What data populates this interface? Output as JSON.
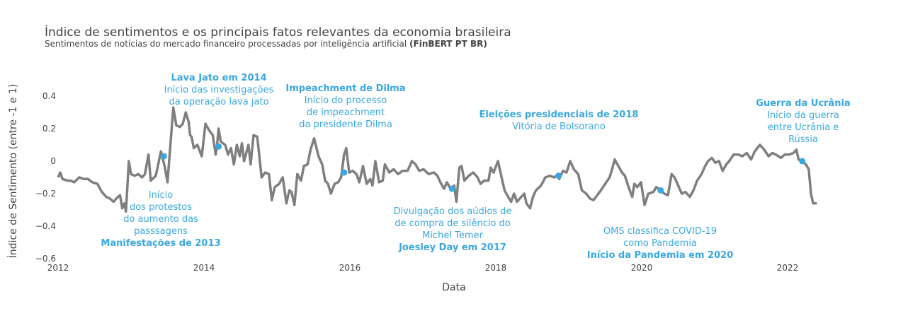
{
  "chart_data": {
    "type": "line",
    "title": "Índice de sentimentos e os principais fatos relevantes da economia brasileira",
    "subtitle": "Sentimentos de notícias do mercado financeiro processadas por inteligência artificial",
    "subtitle_bold": "(FinBERT PT BR)",
    "xlabel": "Data",
    "ylabel": "Índice de Sentimento (entre -1 e 1)",
    "xlim": [
      2012,
      2022.9
    ],
    "ylim": [
      -0.6,
      0.5
    ],
    "x_ticks": [
      "2012",
      "2014",
      "2016",
      "2018",
      "2020",
      "2022"
    ],
    "x_tick_values": [
      2012,
      2014,
      2016,
      2018,
      2020,
      2022
    ],
    "y_ticks": [
      "0.4",
      "0.2",
      "0",
      "−0.2",
      "−0.4",
      "−0.6"
    ],
    "y_tick_values": [
      0.4,
      0.2,
      0,
      -0.2,
      -0.4,
      -0.6
    ],
    "grid": false,
    "colors": {
      "line": "#7f7f7f",
      "annotation": "#3aa8e0",
      "text": "#444444"
    },
    "series": [
      {
        "points": [
          [
            2012.0,
            -0.1
          ],
          [
            2012.03,
            -0.07
          ],
          [
            2012.06,
            -0.11
          ],
          [
            2012.13,
            -0.12
          ],
          [
            2012.17,
            -0.12
          ],
          [
            2012.22,
            -0.13
          ],
          [
            2012.29,
            -0.1
          ],
          [
            2012.35,
            -0.11
          ],
          [
            2012.41,
            -0.11
          ],
          [
            2012.47,
            -0.13
          ],
          [
            2012.54,
            -0.14
          ],
          [
            2012.6,
            -0.19
          ],
          [
            2012.66,
            -0.22
          ],
          [
            2012.71,
            -0.23
          ],
          [
            2012.76,
            -0.25
          ],
          [
            2012.82,
            -0.22
          ],
          [
            2012.85,
            -0.21
          ],
          [
            2012.88,
            -0.29
          ],
          [
            2012.91,
            -0.26
          ],
          [
            2012.93,
            -0.31
          ],
          [
            2012.97,
            0.0
          ],
          [
            2013.0,
            -0.08
          ],
          [
            2013.05,
            -0.09
          ],
          [
            2013.1,
            -0.08
          ],
          [
            2013.15,
            -0.1
          ],
          [
            2013.19,
            -0.08
          ],
          [
            2013.24,
            0.04
          ],
          [
            2013.27,
            -0.12
          ],
          [
            2013.34,
            -0.09
          ],
          [
            2013.41,
            0.06
          ],
          [
            2013.46,
            -0.03
          ],
          [
            2013.5,
            -0.13
          ],
          [
            2013.54,
            0.1
          ],
          [
            2013.58,
            0.33
          ],
          [
            2013.62,
            0.22
          ],
          [
            2013.67,
            0.21
          ],
          [
            2013.71,
            0.23
          ],
          [
            2013.75,
            0.3
          ],
          [
            2013.79,
            0.24
          ],
          [
            2013.81,
            0.16
          ],
          [
            2013.83,
            0.15
          ],
          [
            2013.86,
            0.08
          ],
          [
            2013.91,
            0.1
          ],
          [
            2013.97,
            0.03
          ],
          [
            2014.02,
            0.23
          ],
          [
            2014.07,
            0.19
          ],
          [
            2014.12,
            0.16
          ],
          [
            2014.16,
            0.04
          ],
          [
            2014.18,
            0.1
          ],
          [
            2014.2,
            0.2
          ],
          [
            2014.23,
            0.12
          ],
          [
            2014.29,
            0.1
          ],
          [
            2014.33,
            0.04
          ],
          [
            2014.37,
            0.08
          ],
          [
            2014.41,
            -0.02
          ],
          [
            2014.45,
            0.1
          ],
          [
            2014.49,
            0.03
          ],
          [
            2014.52,
            0.11
          ],
          [
            2014.55,
            0.0
          ],
          [
            2014.61,
            0.1
          ],
          [
            2014.64,
            -0.02
          ],
          [
            2014.68,
            0.16
          ],
          [
            2014.73,
            0.15
          ],
          [
            2014.79,
            -0.1
          ],
          [
            2014.84,
            -0.07
          ],
          [
            2014.89,
            -0.08
          ],
          [
            2014.93,
            -0.24
          ],
          [
            2014.97,
            -0.16
          ],
          [
            2015.03,
            -0.14
          ],
          [
            2015.08,
            -0.1
          ],
          [
            2015.13,
            -0.26
          ],
          [
            2015.17,
            -0.18
          ],
          [
            2015.2,
            -0.19
          ],
          [
            2015.24,
            -0.27
          ],
          [
            2015.28,
            -0.08
          ],
          [
            2015.33,
            -0.12
          ],
          [
            2015.37,
            -0.03
          ],
          [
            2015.42,
            -0.02
          ],
          [
            2015.46,
            0.07
          ],
          [
            2015.51,
            0.14
          ],
          [
            2015.57,
            0.03
          ],
          [
            2015.62,
            -0.02
          ],
          [
            2015.66,
            -0.12
          ],
          [
            2015.7,
            -0.14
          ],
          [
            2015.74,
            -0.2
          ],
          [
            2015.79,
            -0.14
          ],
          [
            2015.84,
            -0.13
          ],
          [
            2015.88,
            -0.1
          ],
          [
            2015.92,
            0.04
          ],
          [
            2015.95,
            0.08
          ],
          [
            2015.99,
            -0.07
          ],
          [
            2016.04,
            -0.06
          ],
          [
            2016.09,
            -0.08
          ],
          [
            2016.13,
            -0.13
          ],
          [
            2016.18,
            -0.03
          ],
          [
            2016.23,
            -0.14
          ],
          [
            2016.28,
            -0.11
          ],
          [
            2016.31,
            -0.15
          ],
          [
            2016.35,
            0.0
          ],
          [
            2016.4,
            -0.13
          ],
          [
            2016.45,
            -0.12
          ],
          [
            2016.48,
            -0.02
          ],
          [
            2016.54,
            -0.07
          ],
          [
            2016.6,
            -0.05
          ],
          [
            2016.66,
            -0.08
          ],
          [
            2016.72,
            -0.06
          ],
          [
            2016.79,
            -0.06
          ],
          [
            2016.85,
            0.0
          ],
          [
            2016.9,
            -0.02
          ],
          [
            2016.95,
            -0.06
          ],
          [
            2017.01,
            -0.05
          ],
          [
            2017.08,
            -0.08
          ],
          [
            2017.15,
            -0.07
          ],
          [
            2017.2,
            -0.09
          ],
          [
            2017.24,
            -0.13
          ],
          [
            2017.29,
            -0.17
          ],
          [
            2017.33,
            -0.13
          ],
          [
            2017.38,
            -0.17
          ],
          [
            2017.43,
            -0.15
          ],
          [
            2017.46,
            -0.25
          ],
          [
            2017.5,
            -0.04
          ],
          [
            2017.53,
            -0.03
          ],
          [
            2017.57,
            -0.12
          ],
          [
            2017.63,
            -0.09
          ],
          [
            2017.69,
            -0.07
          ],
          [
            2017.75,
            -0.1
          ],
          [
            2017.79,
            -0.14
          ],
          [
            2017.84,
            -0.12
          ],
          [
            2017.9,
            -0.12
          ],
          [
            2017.93,
            -0.04
          ],
          [
            2017.97,
            -0.07
          ],
          [
            2018.03,
            0.0
          ],
          [
            2018.08,
            -0.1
          ],
          [
            2018.12,
            -0.18
          ],
          [
            2018.17,
            -0.22
          ],
          [
            2018.21,
            -0.25
          ],
          [
            2018.25,
            -0.2
          ],
          [
            2018.29,
            -0.25
          ],
          [
            2018.35,
            -0.22
          ],
          [
            2018.39,
            -0.2
          ],
          [
            2018.42,
            -0.26
          ],
          [
            2018.47,
            -0.29
          ],
          [
            2018.51,
            -0.22
          ],
          [
            2018.55,
            -0.18
          ],
          [
            2018.62,
            -0.15
          ],
          [
            2018.68,
            -0.1
          ],
          [
            2018.74,
            -0.09
          ],
          [
            2018.8,
            -0.1
          ],
          [
            2018.83,
            -0.09
          ],
          [
            2018.87,
            -0.11
          ],
          [
            2018.92,
            -0.06
          ],
          [
            2018.97,
            -0.07
          ],
          [
            2019.02,
            0.0
          ],
          [
            2019.07,
            -0.05
          ],
          [
            2019.13,
            -0.08
          ],
          [
            2019.18,
            -0.18
          ],
          [
            2019.24,
            -0.2
          ],
          [
            2019.29,
            -0.23
          ],
          [
            2019.34,
            -0.24
          ],
          [
            2019.39,
            -0.21
          ],
          [
            2019.44,
            -0.18
          ],
          [
            2019.5,
            -0.14
          ],
          [
            2019.56,
            -0.1
          ],
          [
            2019.6,
            -0.04
          ],
          [
            2019.63,
            0.01
          ],
          [
            2019.68,
            -0.03
          ],
          [
            2019.73,
            -0.07
          ],
          [
            2019.77,
            -0.09
          ],
          [
            2019.82,
            -0.16
          ],
          [
            2019.87,
            -0.22
          ],
          [
            2019.9,
            -0.14
          ],
          [
            2019.94,
            -0.16
          ],
          [
            2019.99,
            -0.13
          ],
          [
            2020.04,
            -0.27
          ],
          [
            2020.09,
            -0.2
          ],
          [
            2020.16,
            -0.19
          ],
          [
            2020.2,
            -0.16
          ],
          [
            2020.26,
            -0.18
          ],
          [
            2020.31,
            -0.2
          ],
          [
            2020.36,
            -0.21
          ],
          [
            2020.41,
            -0.08
          ],
          [
            2020.45,
            -0.1
          ],
          [
            2020.5,
            -0.15
          ],
          [
            2020.55,
            -0.2
          ],
          [
            2020.6,
            -0.19
          ],
          [
            2020.66,
            -0.22
          ],
          [
            2020.71,
            -0.18
          ],
          [
            2020.76,
            -0.12
          ],
          [
            2020.82,
            -0.08
          ],
          [
            2020.87,
            -0.03
          ],
          [
            2020.91,
            0.0
          ],
          [
            2020.96,
            0.02
          ],
          [
            2021.01,
            -0.01
          ],
          [
            2021.06,
            0.0
          ],
          [
            2021.11,
            -0.06
          ],
          [
            2021.16,
            -0.02
          ],
          [
            2021.2,
            0.0
          ],
          [
            2021.26,
            0.04
          ],
          [
            2021.32,
            0.04
          ],
          [
            2021.38,
            0.03
          ],
          [
            2021.44,
            0.05
          ],
          [
            2021.5,
            0.01
          ],
          [
            2021.55,
            0.06
          ],
          [
            2021.62,
            0.1
          ],
          [
            2021.68,
            0.07
          ],
          [
            2021.74,
            0.03
          ],
          [
            2021.79,
            0.05
          ],
          [
            2021.84,
            0.04
          ],
          [
            2021.91,
            0.02
          ],
          [
            2021.96,
            0.04
          ],
          [
            2022.02,
            0.04
          ],
          [
            2022.08,
            0.05
          ],
          [
            2022.12,
            0.07
          ],
          [
            2022.15,
            0.01
          ],
          [
            2022.2,
            0.0
          ],
          [
            2022.25,
            -0.02
          ],
          [
            2022.29,
            -0.05
          ],
          [
            2022.32,
            -0.2
          ],
          [
            2022.35,
            -0.26
          ],
          [
            2022.4,
            -0.26
          ]
        ]
      }
    ],
    "annotations": [
      {
        "x": 2013.45,
        "y": 0.03,
        "title": "Manifestações de 2013",
        "lines": [
          "Início",
          "dos protestos",
          "do aumento das",
          "passsagens"
        ],
        "title_position": "bottom"
      },
      {
        "x": 2014.2,
        "y": 0.09,
        "title": "Lava Jato em 2014",
        "lines": [
          "Início das investigações",
          "da operação lava jato"
        ],
        "title_position": "top"
      },
      {
        "x": 2015.92,
        "y": -0.07,
        "title": "Impeachment de Dilma",
        "lines": [
          "Início do processo",
          "de impeachment",
          "da presidente Dilma"
        ],
        "title_position": "top"
      },
      {
        "x": 2017.4,
        "y": -0.17,
        "title": "Joesley Day em 2017",
        "lines": [
          "Divulgação dos aúdios de",
          "de compra de silêncio do",
          "Michel Temer"
        ],
        "title_position": "bottom"
      },
      {
        "x": 2018.86,
        "y": -0.09,
        "title": "Eleições presidenciais de 2018",
        "lines": [
          "Vitória de Bolsorano"
        ],
        "title_position": "top"
      },
      {
        "x": 2020.26,
        "y": -0.18,
        "title": "Início da Pandemia em 2020",
        "lines": [
          "OMS classifica COVID-19",
          "como Pandemia"
        ],
        "title_position": "bottom"
      },
      {
        "x": 2022.2,
        "y": 0.0,
        "title": "Guerra da Ucrânia",
        "lines": [
          "Início da guerra",
          "entre Ucrânia e",
          "Rússia"
        ],
        "title_position": "top"
      }
    ]
  }
}
